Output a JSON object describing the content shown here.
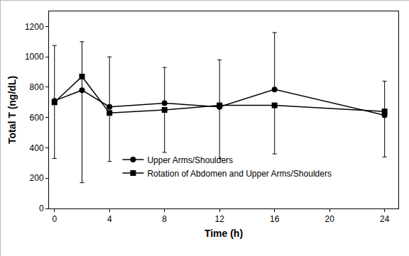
{
  "chart_data": {
    "type": "line",
    "x_label": "Time (h)",
    "y_label": "Total T (ng/dL)",
    "xlim": [
      -0.4,
      25
    ],
    "xticks": [
      0,
      4,
      8,
      12,
      16,
      20,
      24
    ],
    "ylim": [
      0,
      1300
    ],
    "yticks": [
      0,
      200,
      400,
      600,
      800,
      1000,
      1200
    ],
    "grid": false,
    "legend": "lower left",
    "x": [
      0,
      2,
      4,
      8,
      12,
      16,
      24
    ],
    "series": [
      {
        "name": "Upper Arms/Shoulders",
        "color": "#000000",
        "marker": "circle",
        "line_style": "solid",
        "values": [
          710,
          780,
          670,
          695,
          670,
          785,
          615
        ],
        "error_plus": [
          365,
          320,
          330,
          235,
          310,
          375,
          225
        ]
      },
      {
        "name": "Rotation of Abdomen and Upper Arms/Shoulders",
        "color": "#000000",
        "marker": "square",
        "line_style": "solid",
        "values": [
          700,
          870,
          630,
          650,
          680,
          680,
          640
        ],
        "error_minus": [
          370,
          700,
          320,
          280,
          350,
          320,
          300
        ]
      }
    ]
  }
}
